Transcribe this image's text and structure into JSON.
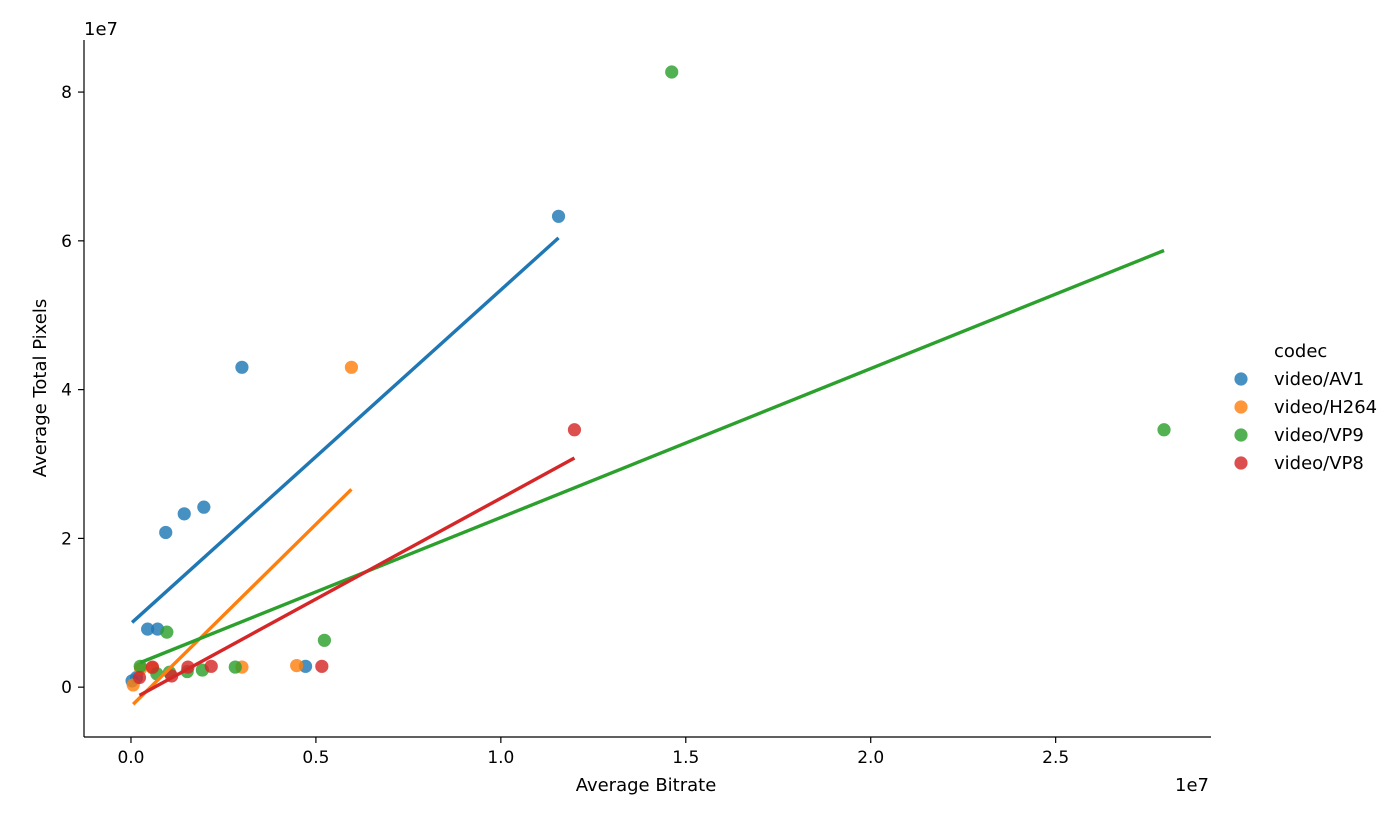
{
  "chart_data": {
    "type": "scatter",
    "title": "",
    "xlabel": "Average Bitrate",
    "ylabel": "Average Total Pixels",
    "x_offset_text": "1e7",
    "y_offset_text": "1e7",
    "x_scale": 10000000,
    "y_scale": 10000000,
    "xlim": [
      -1270000,
      29200000
    ],
    "ylim": [
      -6700000,
      87000000
    ],
    "x_ticks": [
      0,
      5000000,
      10000000,
      15000000,
      20000000,
      25000000
    ],
    "x_tick_labels": [
      "0.0",
      "0.5",
      "1.0",
      "1.5",
      "2.0",
      "2.5"
    ],
    "y_ticks": [
      0,
      20000000,
      40000000,
      60000000,
      80000000
    ],
    "y_tick_labels": [
      "0",
      "2",
      "4",
      "6",
      "8"
    ],
    "grid": false,
    "legend": {
      "title": "codec",
      "placement": "right"
    },
    "series": [
      {
        "name": "video/AV1",
        "color": "#1f77b4",
        "points": [
          [
            30000,
            850000
          ],
          [
            150000,
            1300000
          ],
          [
            450000,
            7800000
          ],
          [
            720000,
            7800000
          ],
          [
            940000,
            20800000
          ],
          [
            1440000,
            23300000
          ],
          [
            1970000,
            24200000
          ],
          [
            3000000,
            43000000
          ],
          [
            4720000,
            2800000
          ],
          [
            11560000,
            63300000
          ]
        ],
        "fit": [
          [
            30000,
            8700000
          ],
          [
            11560000,
            60400000
          ]
        ]
      },
      {
        "name": "video/H264",
        "color": "#ff7f0e",
        "points": [
          [
            60000,
            300000
          ],
          [
            260000,
            2500000
          ],
          [
            580000,
            2600000
          ],
          [
            3000000,
            2700000
          ],
          [
            4480000,
            2900000
          ],
          [
            5960000,
            43000000
          ]
        ],
        "fit": [
          [
            60000,
            -2300000
          ],
          [
            5960000,
            26600000
          ]
        ]
      },
      {
        "name": "video/VP9",
        "color": "#2ca02c",
        "points": [
          [
            250000,
            2800000
          ],
          [
            700000,
            1800000
          ],
          [
            970000,
            7400000
          ],
          [
            1040000,
            2000000
          ],
          [
            1520000,
            2100000
          ],
          [
            1930000,
            2300000
          ],
          [
            2820000,
            2700000
          ],
          [
            5230000,
            6300000
          ],
          [
            14620000,
            82700000
          ],
          [
            27930000,
            34600000
          ]
        ],
        "fit": [
          [
            250000,
            3300000
          ],
          [
            27930000,
            58700000
          ]
        ]
      },
      {
        "name": "video/VP8",
        "color": "#d62728",
        "points": [
          [
            230000,
            1300000
          ],
          [
            580000,
            2700000
          ],
          [
            1100000,
            1500000
          ],
          [
            1540000,
            2700000
          ],
          [
            2170000,
            2800000
          ],
          [
            5160000,
            2800000
          ],
          [
            11990000,
            34600000
          ]
        ],
        "fit": [
          [
            230000,
            -1100000
          ],
          [
            11990000,
            30800000
          ]
        ]
      }
    ]
  }
}
